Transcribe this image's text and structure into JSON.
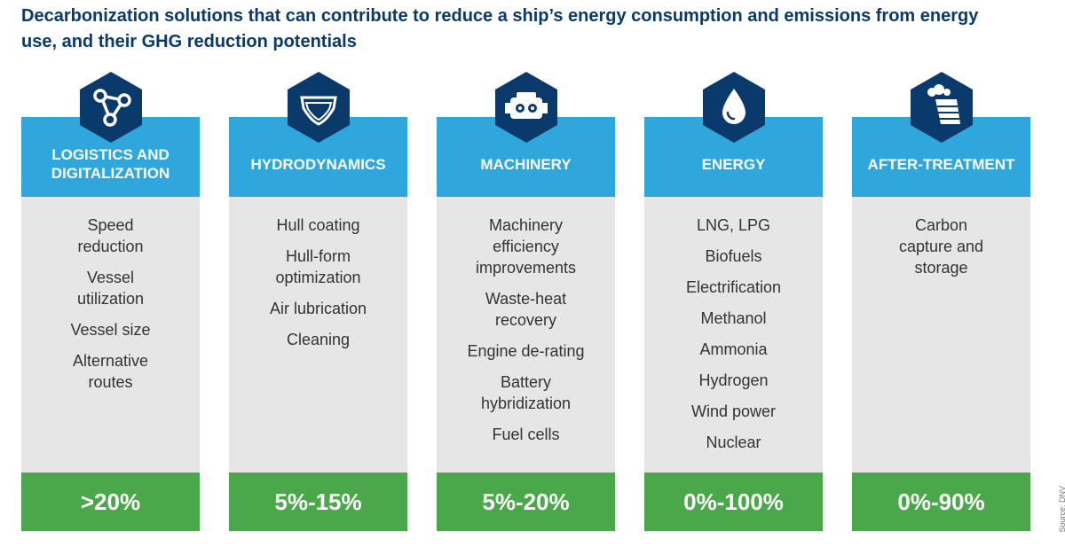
{
  "title": "Decarbonization solutions that can contribute to reduce a ship’s energy consumption and emissions from energy use, and their GHG reduction potentials",
  "source": "Source: DNV",
  "colors": {
    "title": "#0a3a6b",
    "hex": "#0a3a6b",
    "header": "#2fa6dc",
    "body": "#e6e6e6",
    "footer": "#4aa84a"
  },
  "columns": [
    {
      "icon": "network-icon",
      "header": "LOGISTICS AND\nDIGITALIZATION",
      "items": [
        "Speed\nreduction",
        "Vessel\nutilization",
        "Vessel size",
        "Alternative\nroutes"
      ],
      "potential": ">20%"
    },
    {
      "icon": "hull-icon",
      "header": "HYDRODYNAMICS",
      "items": [
        "Hull coating",
        "Hull-form\noptimization",
        "Air lubrication",
        "Cleaning"
      ],
      "potential": "5%-15%"
    },
    {
      "icon": "engine-icon",
      "header": "MACHINERY",
      "items": [
        "Machinery\nefficiency\nimprovements",
        "Waste-heat\nrecovery",
        "Engine de-rating",
        "Battery\nhybridization",
        "Fuel cells"
      ],
      "potential": "5%-20%"
    },
    {
      "icon": "droplet-icon",
      "header": "ENERGY",
      "items": [
        "LNG, LPG",
        "Biofuels",
        "Electrification",
        "Methanol",
        "Ammonia",
        "Hydrogen",
        "Wind power",
        "Nuclear"
      ],
      "potential": "0%-100%"
    },
    {
      "icon": "chimney-icon",
      "header": "AFTER-TREATMENT",
      "items": [
        "Carbon\ncapture and\nstorage"
      ],
      "potential": "0%-90%"
    }
  ]
}
